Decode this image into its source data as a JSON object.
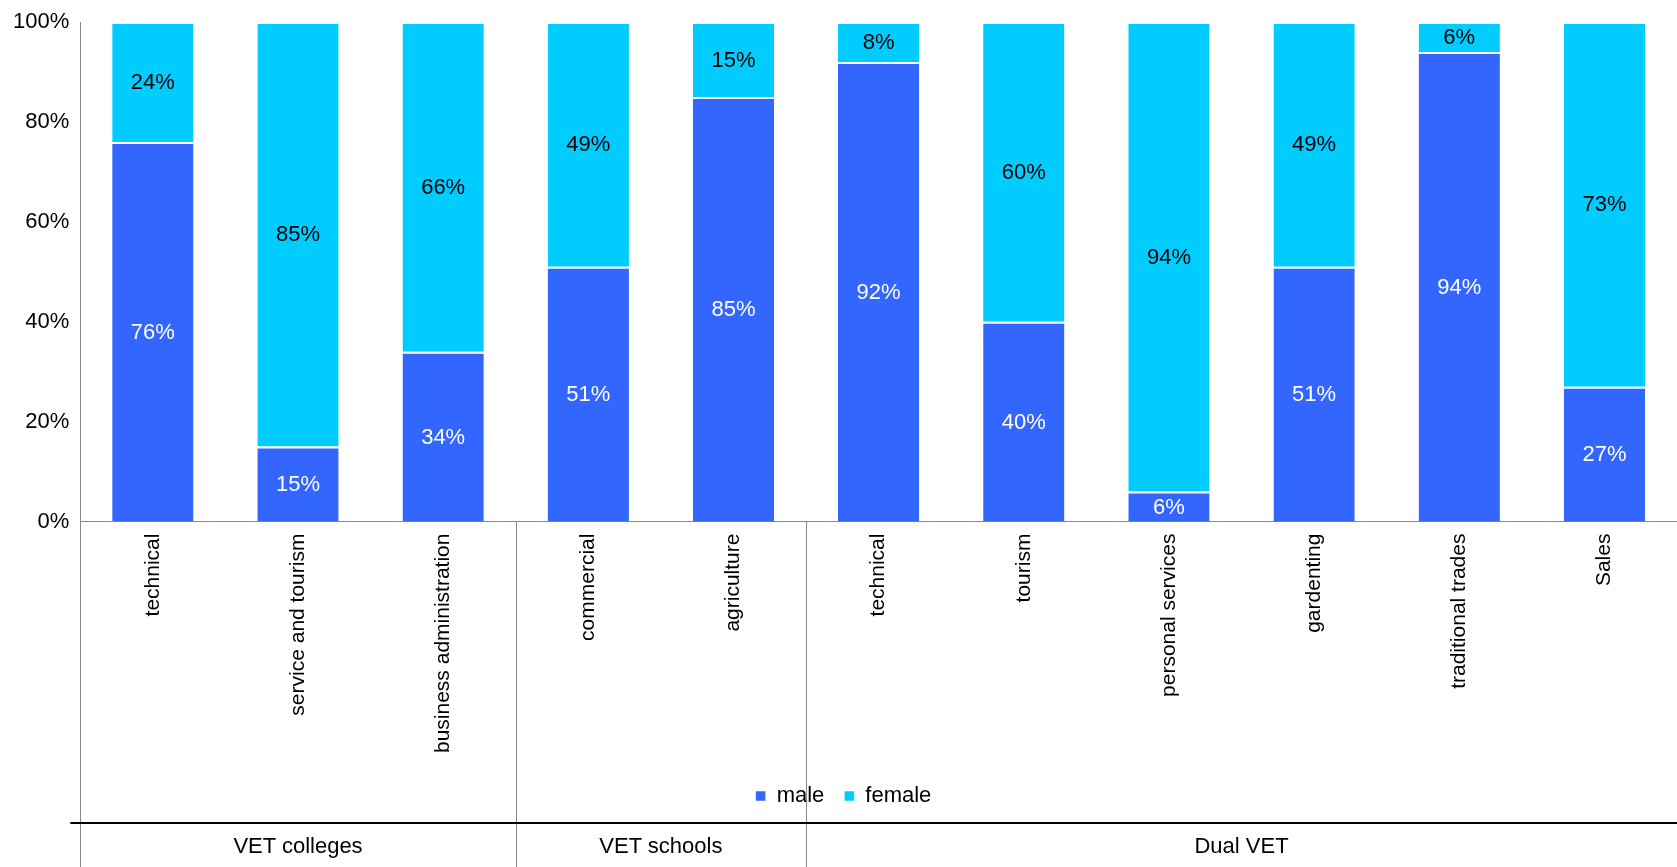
{
  "chart_data": {
    "type": "bar",
    "stacked": true,
    "categories": [
      "technical",
      "service and tourism",
      "business administration",
      "commercial",
      "agriculture",
      "technical",
      "tourism",
      "personal services",
      "gardenting",
      "traditional trades",
      "Sales"
    ],
    "series": [
      {
        "name": "male",
        "color": "#3366ff",
        "values": [
          76,
          15,
          34,
          51,
          85,
          92,
          40,
          6,
          51,
          94,
          27
        ],
        "value_labels": [
          "76%",
          "15%",
          "34%",
          "51%",
          "85%",
          "92%",
          "40%",
          "6%",
          "51%",
          "94%",
          "27%"
        ]
      },
      {
        "name": "female",
        "color": "#00ccff",
        "values": [
          24,
          85,
          66,
          49,
          15,
          8,
          60,
          94,
          49,
          6,
          73
        ],
        "value_labels": [
          "24%",
          "85%",
          "66%",
          "49%",
          "15%",
          "8%",
          "60%",
          "94%",
          "49%",
          "6%",
          "73%"
        ]
      }
    ],
    "ylim": [
      0,
      100
    ],
    "yticks": [
      {
        "value": 0,
        "label": "0%"
      },
      {
        "value": 20,
        "label": "20%"
      },
      {
        "value": 40,
        "label": "40%"
      },
      {
        "value": 60,
        "label": "60%"
      },
      {
        "value": 80,
        "label": "80%"
      },
      {
        "value": 100,
        "label": "100%"
      }
    ],
    "grid": false,
    "legend": "bottom",
    "annotations": [
      "VET colleges",
      "VET schools",
      "Dual VET"
    ]
  }
}
